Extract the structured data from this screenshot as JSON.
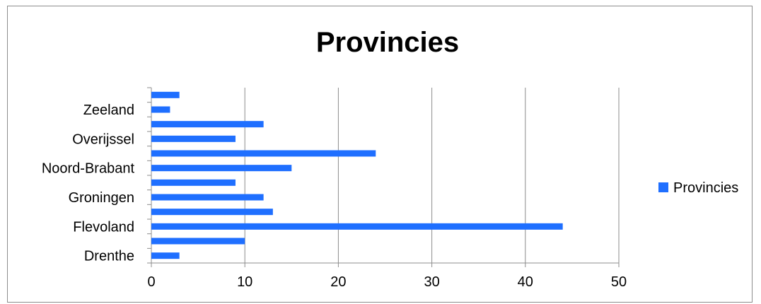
{
  "chart_data": {
    "type": "bar",
    "orientation": "horizontal",
    "title": "Provincies",
    "xlabel": "",
    "ylabel": "",
    "xlim": [
      0,
      50
    ],
    "x_ticks": [
      0,
      10,
      20,
      30,
      40,
      50
    ],
    "categories": [
      "Drenthe",
      "",
      "Flevoland",
      "",
      "Groningen",
      "",
      "Noord-Brabant",
      "",
      "Overijssel",
      "",
      "Zeeland",
      ""
    ],
    "series": [
      {
        "name": "Provincies",
        "values": [
          3,
          10,
          44,
          13,
          12,
          9,
          15,
          24,
          9,
          12,
          2,
          3
        ]
      }
    ],
    "bar_color": "#1f6fff",
    "grid": "vertical",
    "legend": "right"
  }
}
